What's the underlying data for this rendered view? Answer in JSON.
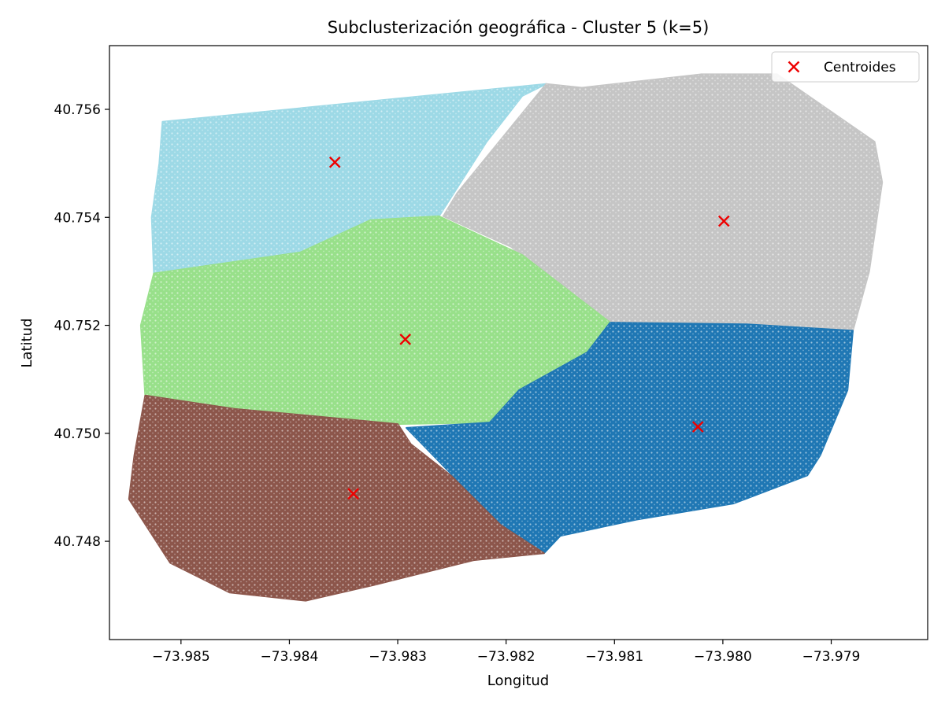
{
  "chart_data": {
    "type": "scatter",
    "title": "Subclusterización geográfica - Cluster 5 (k=5)",
    "xlabel": "Longitud",
    "ylabel": "Latitud",
    "xlim": [
      -73.98566,
      -73.97811
    ],
    "ylim": [
      40.74618,
      40.75718
    ],
    "x_ticks": [
      -73.985,
      -73.984,
      -73.983,
      -73.982,
      -73.981,
      -73.98,
      -73.979
    ],
    "x_tick_labels": [
      "−73.985",
      "−73.984",
      "−73.983",
      "−73.982",
      "−73.981",
      "−73.980",
      "−73.979"
    ],
    "y_ticks": [
      40.748,
      40.75,
      40.752,
      40.754,
      40.756
    ],
    "y_tick_labels": [
      "40.748",
      "40.750",
      "40.752",
      "40.754",
      "40.756"
    ],
    "grid": false,
    "legend": {
      "position": "top-right",
      "entries": [
        "Centroides"
      ]
    },
    "centroid_color": "#ee0000",
    "clusters": [
      {
        "color": "#9dd9e6",
        "centroid": [
          -73.98358,
          40.75502
        ],
        "region": [
          [
            -73.98517,
            40.75577
          ],
          [
            -73.98163,
            40.75647
          ],
          [
            -73.98185,
            40.75625
          ],
          [
            -73.98218,
            40.7554
          ],
          [
            -73.98262,
            40.75402
          ],
          [
            -73.98325,
            40.75395
          ],
          [
            -73.9839,
            40.75335
          ],
          [
            -73.9846,
            40.7531
          ],
          [
            -73.98525,
            40.75296
          ],
          [
            -73.98527,
            40.754
          ],
          [
            -73.9852,
            40.755
          ]
        ]
      },
      {
        "color": "#c5c5c5",
        "centroid": [
          -73.97999,
          40.75393
        ],
        "region": [
          [
            -73.98163,
            40.75647
          ],
          [
            -73.9813,
            40.7564
          ],
          [
            -73.9802,
            40.75665
          ],
          [
            -73.9795,
            40.75665
          ],
          [
            -73.9786,
            40.7554
          ],
          [
            -73.97853,
            40.75465
          ],
          [
            -73.97865,
            40.753
          ],
          [
            -73.9788,
            40.7519
          ],
          [
            -73.97978,
            40.75202
          ],
          [
            -73.98032,
            40.75202
          ],
          [
            -73.98104,
            40.75205
          ],
          [
            -73.9815,
            40.75262
          ],
          [
            -73.98195,
            40.75345
          ],
          [
            -73.98258,
            40.75402
          ],
          [
            -73.98245,
            40.75445
          ]
        ]
      },
      {
        "color": "#98e08a",
        "centroid": [
          -73.98293,
          40.75174
        ],
        "region": [
          [
            -73.98525,
            40.75296
          ],
          [
            -73.9839,
            40.75335
          ],
          [
            -73.98325,
            40.75395
          ],
          [
            -73.98262,
            40.75402
          ],
          [
            -73.98185,
            40.7533
          ],
          [
            -73.98104,
            40.75205
          ],
          [
            -73.98125,
            40.7515
          ],
          [
            -73.98188,
            40.7508
          ],
          [
            -73.98215,
            40.7502
          ],
          [
            -73.983,
            40.75017
          ],
          [
            -73.98395,
            40.75035
          ],
          [
            -73.9845,
            40.75045
          ],
          [
            -73.98533,
            40.7507
          ],
          [
            -73.98537,
            40.752
          ]
        ]
      },
      {
        "color": "#1f77b4",
        "centroid": [
          -73.98023,
          40.75012
        ],
        "region": [
          [
            -73.98104,
            40.75205
          ],
          [
            -73.97978,
            40.75202
          ],
          [
            -73.9788,
            40.7519
          ],
          [
            -73.97885,
            40.7508
          ],
          [
            -73.9791,
            40.7496
          ],
          [
            -73.97922,
            40.74922
          ],
          [
            -73.9799,
            40.7487
          ],
          [
            -73.9808,
            40.7484
          ],
          [
            -73.9815,
            40.7481
          ],
          [
            -73.98165,
            40.74778
          ],
          [
            -73.98205,
            40.7483
          ],
          [
            -73.98258,
            40.7494
          ],
          [
            -73.98292,
            40.7501
          ],
          [
            -73.98215,
            40.7502
          ],
          [
            -73.98188,
            40.7508
          ],
          [
            -73.98125,
            40.7515
          ]
        ]
      },
      {
        "color": "#8c564b",
        "centroid": [
          -73.98341,
          40.74888
        ],
        "region": [
          [
            -73.98533,
            40.7507
          ],
          [
            -73.9845,
            40.75045
          ],
          [
            -73.98395,
            40.75035
          ],
          [
            -73.983,
            40.75017
          ],
          [
            -73.98288,
            40.7498
          ],
          [
            -73.9825,
            40.7492
          ],
          [
            -73.98205,
            40.7483
          ],
          [
            -73.98165,
            40.74778
          ],
          [
            -73.9823,
            40.74765
          ],
          [
            -73.9832,
            40.7472
          ],
          [
            -73.98385,
            40.7469
          ],
          [
            -73.98455,
            40.74705
          ],
          [
            -73.9851,
            40.7476
          ],
          [
            -73.98548,
            40.74878
          ],
          [
            -73.98543,
            40.7496
          ]
        ]
      }
    ]
  }
}
